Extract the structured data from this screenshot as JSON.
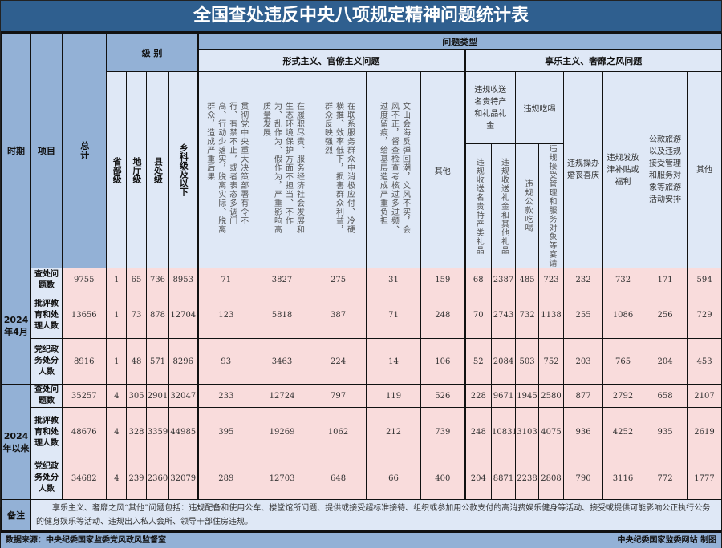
{
  "title": "全国查处违反中央八项规定精神问题统计表",
  "headers": {
    "period": "时期",
    "item": "项目",
    "total": "总计",
    "level": "级 别",
    "levels": [
      "省部级",
      "地厅级",
      "县处级",
      "乡科级及以下"
    ],
    "problem_type": "问题类型",
    "formalism": "形式主义、官僚主义问题",
    "formalism_cols": [
      "贯彻党中央重大决策部署有令不行、有禁不止，或者表态多调门高、行动少落实，脱离实际、脱离群众，造成严重后果",
      "在履职尽责、服务经济社会发展和生态环境保护方面不担当、不作为、乱作为、假作为，严重影响高质量发展",
      "在联系服务群众中消极应付、冷硬横推、效率低下，损害群众利益，群众反映强烈",
      "文山会海反弹回潮，文风不实，会风不正，督查检查考核过多过频、过度留痕，给基层造成严重负担",
      "其他"
    ],
    "hedonism": "享乐主义、奢靡之风问题",
    "gifts": "违规收送名贵特产和礼品礼金",
    "gifts_sub": [
      "违规收送名贵特产类礼品",
      "违规收送礼金和其他礼品"
    ],
    "dining": "违规吃喝",
    "dining_sub": [
      "违规公款吃喝",
      "违规接受管理和服务对象等宴请"
    ],
    "hedonism_cols": [
      "违规操办婚丧喜庆",
      "违规发放津补贴或福利",
      "公款旅游以及违规接受管理和服务对象等旅游活动安排",
      "其他"
    ]
  },
  "periods": [
    {
      "label": "2024年4月",
      "rows": [
        {
          "item": "查处问题数",
          "values": [
            "9755",
            "1",
            "65",
            "736",
            "8953",
            "71",
            "3827",
            "275",
            "31",
            "159",
            "68",
            "2387",
            "485",
            "723",
            "232",
            "732",
            "171",
            "594"
          ]
        },
        {
          "item": "批评教育和处理人数",
          "values": [
            "13656",
            "1",
            "73",
            "878",
            "12704",
            "123",
            "5818",
            "387",
            "71",
            "248",
            "70",
            "2743",
            "732",
            "1138",
            "255",
            "1086",
            "256",
            "729"
          ]
        },
        {
          "item": "党纪政务处分人数",
          "values": [
            "8916",
            "1",
            "48",
            "571",
            "8296",
            "93",
            "3463",
            "224",
            "14",
            "106",
            "52",
            "2084",
            "503",
            "752",
            "203",
            "765",
            "204",
            "453"
          ]
        }
      ]
    },
    {
      "label": "2024年以来",
      "rows": [
        {
          "item": "查处问题数",
          "values": [
            "35257",
            "4",
            "305",
            "2901",
            "32047",
            "233",
            "12724",
            "797",
            "119",
            "526",
            "228",
            "9671",
            "1945",
            "2580",
            "877",
            "2792",
            "658",
            "2107"
          ]
        },
        {
          "item": "批评教育和处理人数",
          "values": [
            "48676",
            "4",
            "328",
            "3359",
            "44985",
            "395",
            "19269",
            "1062",
            "212",
            "739",
            "248",
            "10831",
            "3103",
            "4075",
            "936",
            "4252",
            "935",
            "2619"
          ]
        },
        {
          "item": "党纪政务处分人数",
          "values": [
            "34682",
            "4",
            "239",
            "2360",
            "32079",
            "289",
            "12703",
            "648",
            "66",
            "400",
            "204",
            "8871",
            "2238",
            "2808",
            "790",
            "3116",
            "772",
            "1777"
          ]
        }
      ]
    }
  ],
  "note_label": "备注",
  "note": "享乐主义、奢靡之风“其他”问题包括：违规配备和使用公车、楼堂馆所问题、提供或接受超标准接待、组织或参加用公款支付的高消费娱乐健身等活动、接受或提供可能影响公正执行公务的健身娱乐等活动、违规出入私人会所、领导干部住房违规。",
  "source": "数据来源：中央纪委国家监委党风政风监督室",
  "credit": "中央纪委国家监委网站 制图",
  "colors": {
    "title_bg": "#2f5f8f",
    "header_bg": "#93b1d6",
    "light_header_bg": "#dfe8f6",
    "data_bg": "#f9dcdc"
  }
}
